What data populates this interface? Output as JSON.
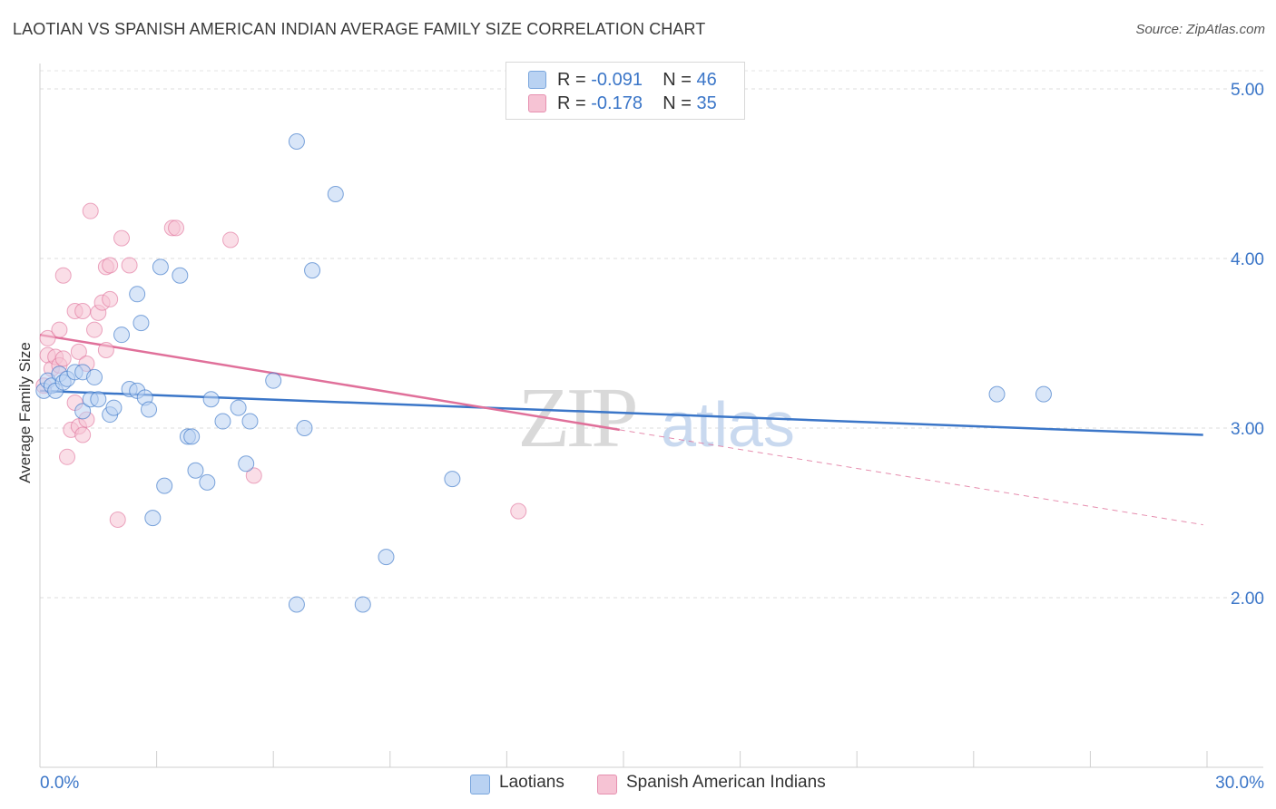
{
  "title": "LAOTIAN VS SPANISH AMERICAN INDIAN AVERAGE FAMILY SIZE CORRELATION CHART",
  "source": "Source: ZipAtlas.com",
  "watermark": {
    "zip": "ZIP",
    "atlas": "atlas"
  },
  "legend": {
    "series1": {
      "r_label": "R = ",
      "r_value": "-0.091",
      "n_label": "N = ",
      "n_value": "46"
    },
    "series2": {
      "r_label": "R = ",
      "r_value": "-0.178",
      "n_label": "N = ",
      "n_value": "35"
    }
  },
  "bottom_legend": {
    "series1": "Laotians",
    "series2": "Spanish American Indians"
  },
  "chart_data": {
    "type": "scatter",
    "title": "LAOTIAN VS SPANISH AMERICAN INDIAN AVERAGE FAMILY SIZE CORRELATION CHART",
    "xlabel": "",
    "ylabel": "Average Family Size",
    "xlim": [
      0,
      30
    ],
    "ylim": [
      1.0,
      5.15
    ],
    "x_tick_labels": [
      "0.0%",
      "30.0%"
    ],
    "y_ticks": [
      2.0,
      3.0,
      4.0,
      5.0
    ],
    "y_tick_labels": [
      "2.00",
      "3.00",
      "4.00",
      "5.00"
    ],
    "grid": true,
    "colors": {
      "series1": "#3b76c8",
      "series1_fill": "#b9d2f2",
      "series2": "#e0709a",
      "series2_fill": "#f6c3d4"
    },
    "series": [
      {
        "name": "Laotians",
        "color": "#3b76c8",
        "points": [
          [
            0.1,
            3.22
          ],
          [
            0.2,
            3.28
          ],
          [
            0.3,
            3.25
          ],
          [
            0.4,
            3.22
          ],
          [
            0.5,
            3.32
          ],
          [
            0.6,
            3.27
          ],
          [
            0.7,
            3.29
          ],
          [
            0.9,
            3.33
          ],
          [
            1.1,
            3.33
          ],
          [
            1.1,
            3.1
          ],
          [
            1.4,
            3.3
          ],
          [
            1.3,
            3.17
          ],
          [
            1.5,
            3.17
          ],
          [
            1.8,
            3.08
          ],
          [
            1.9,
            3.12
          ],
          [
            2.1,
            3.55
          ],
          [
            2.3,
            3.23
          ],
          [
            2.5,
            3.22
          ],
          [
            2.5,
            3.79
          ],
          [
            2.6,
            3.62
          ],
          [
            2.7,
            3.18
          ],
          [
            2.8,
            3.11
          ],
          [
            2.9,
            2.47
          ],
          [
            3.1,
            3.95
          ],
          [
            3.2,
            2.66
          ],
          [
            3.6,
            3.9
          ],
          [
            3.8,
            2.95
          ],
          [
            3.9,
            2.95
          ],
          [
            4.0,
            2.75
          ],
          [
            4.3,
            2.68
          ],
          [
            4.4,
            3.17
          ],
          [
            4.7,
            3.04
          ],
          [
            5.1,
            3.12
          ],
          [
            5.3,
            2.79
          ],
          [
            5.4,
            3.04
          ],
          [
            6.0,
            3.28
          ],
          [
            6.6,
            4.69
          ],
          [
            6.6,
            1.96
          ],
          [
            6.8,
            3.0
          ],
          [
            7.0,
            3.93
          ],
          [
            7.6,
            4.38
          ],
          [
            8.3,
            1.96
          ],
          [
            8.9,
            2.24
          ],
          [
            10.6,
            2.7
          ],
          [
            24.6,
            3.2
          ],
          [
            25.8,
            3.2
          ]
        ],
        "trend": [
          [
            0,
            3.22
          ],
          [
            29.9,
            2.96
          ]
        ]
      },
      {
        "name": "Spanish American Indians",
        "color": "#e0709a",
        "points": [
          [
            0.1,
            3.25
          ],
          [
            0.2,
            3.43
          ],
          [
            0.2,
            3.53
          ],
          [
            0.3,
            3.35
          ],
          [
            0.4,
            3.42
          ],
          [
            0.5,
            3.58
          ],
          [
            0.5,
            3.37
          ],
          [
            0.6,
            3.41
          ],
          [
            0.6,
            3.9
          ],
          [
            0.7,
            2.83
          ],
          [
            0.8,
            2.99
          ],
          [
            0.9,
            3.15
          ],
          [
            1.0,
            3.45
          ],
          [
            0.9,
            3.69
          ],
          [
            1.0,
            3.01
          ],
          [
            1.1,
            2.96
          ],
          [
            1.1,
            3.69
          ],
          [
            1.2,
            3.05
          ],
          [
            1.3,
            4.28
          ],
          [
            1.4,
            3.58
          ],
          [
            1.5,
            3.68
          ],
          [
            1.6,
            3.74
          ],
          [
            1.7,
            3.46
          ],
          [
            1.7,
            3.95
          ],
          [
            1.8,
            3.76
          ],
          [
            1.8,
            3.96
          ],
          [
            2.0,
            2.46
          ],
          [
            2.1,
            4.12
          ],
          [
            2.3,
            3.96
          ],
          [
            3.4,
            4.18
          ],
          [
            3.5,
            4.18
          ],
          [
            4.9,
            4.11
          ],
          [
            5.5,
            2.72
          ],
          [
            12.3,
            2.51
          ],
          [
            1.2,
            3.38
          ]
        ],
        "trend_solid": [
          [
            0,
            3.55
          ],
          [
            14.9,
            2.99
          ]
        ],
        "trend_dashed": [
          [
            14.9,
            2.99
          ],
          [
            29.9,
            2.43
          ]
        ]
      }
    ]
  }
}
